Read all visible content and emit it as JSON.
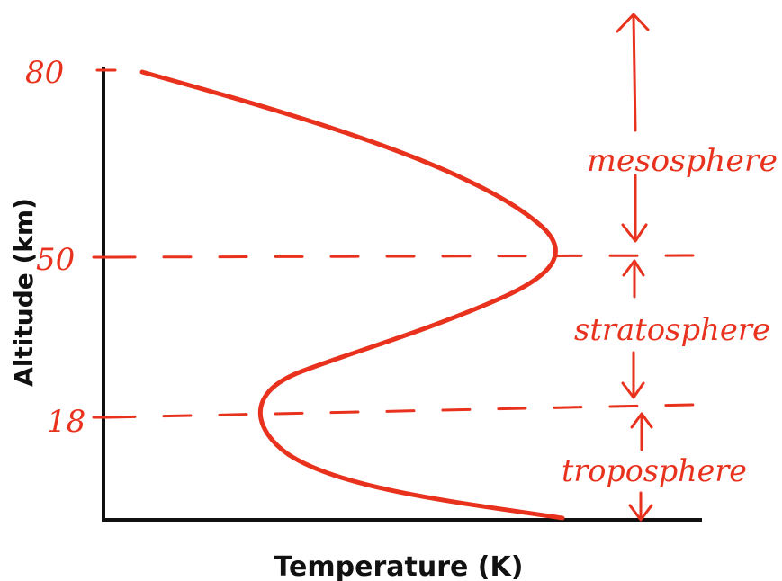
{
  "axes": {
    "x_label": "Temperature (K)",
    "y_label": "Altitude (km)",
    "y_ticks": [
      "80",
      "50",
      "18"
    ]
  },
  "layers": [
    {
      "key": "mesosphere",
      "label": "mesosphere"
    },
    {
      "key": "stratosphere",
      "label": "stratosphere"
    },
    {
      "key": "troposphere",
      "label": "troposphere"
    }
  ],
  "colors": {
    "ink": "#e8321e",
    "axis": "#111111"
  }
}
